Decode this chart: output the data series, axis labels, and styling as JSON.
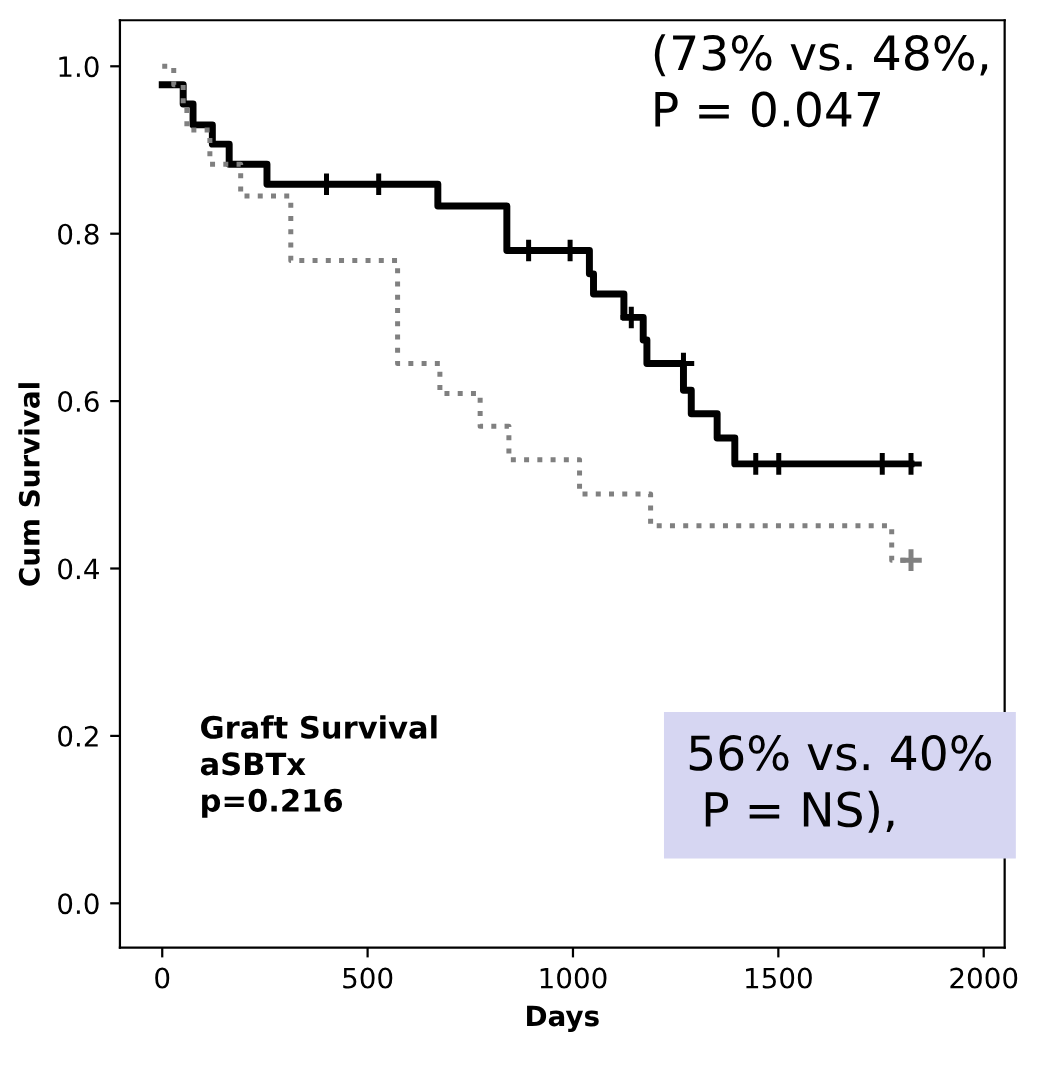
{
  "chart_data": {
    "type": "step",
    "xlabel": "Days",
    "ylabel": "Cum Survival",
    "xlim": [
      -103,
      2051
    ],
    "ylim": [
      -0.053,
      1.055
    ],
    "xticks": [
      0,
      500,
      1000,
      1500,
      2000
    ],
    "yticks": [
      {
        "value": 0.0,
        "label": "0.0"
      },
      {
        "value": 0.2,
        "label": "0.2"
      },
      {
        "value": 0.4,
        "label": "0.4"
      },
      {
        "value": 0.6,
        "label": "0.6"
      },
      {
        "value": 0.8,
        "label": "0.8"
      },
      {
        "value": 1.0,
        "label": "1.0"
      }
    ],
    "grid": false,
    "legend": false,
    "series": [
      {
        "color": "#000000",
        "line_style": "solid",
        "x": [
          0,
          51,
          75,
          122,
          163,
          255,
          671,
          839,
          1040,
          1050,
          1124,
          1171,
          1180,
          1269,
          1288,
          1351,
          1394,
          1823
        ],
        "values": [
          0.978,
          0.955,
          0.93,
          0.907,
          0.883,
          0.859,
          0.833,
          0.78,
          0.752,
          0.728,
          0.7,
          0.673,
          0.645,
          0.613,
          0.585,
          0.556,
          0.525,
          0.525
        ]
      },
      {
        "color": "#808080",
        "line_style": "dotted",
        "x": [
          0,
          28,
          51,
          60,
          116,
          191,
          313,
          573,
          676,
          774,
          844,
          1016,
          1189,
          1776,
          1823
        ],
        "values": [
          1.0,
          0.978,
          0.952,
          0.924,
          0.883,
          0.845,
          0.768,
          0.645,
          0.609,
          0.57,
          0.53,
          0.489,
          0.451,
          0.41,
          0.41
        ]
      },
      {
        "type": "scatter",
        "marker": "cross",
        "color": "#000000",
        "x": [
          400,
          527,
          892,
          993,
          1142,
          1269,
          1445,
          1501,
          1753,
          1823
        ],
        "values": [
          0.859,
          0.859,
          0.78,
          0.78,
          0.7,
          0.645,
          0.525,
          0.525,
          0.525,
          0.525
        ]
      },
      {
        "type": "scatter",
        "marker": "cross",
        "color": "#808080",
        "x": [
          1823
        ],
        "values": [
          0.41
        ]
      }
    ],
    "annotations": [
      "(73% vs. 48%,\nP = 0.047",
      "56% vs. 40%\n P = NS),",
      "Graft Survival\naSBTx\np=0.216"
    ]
  }
}
